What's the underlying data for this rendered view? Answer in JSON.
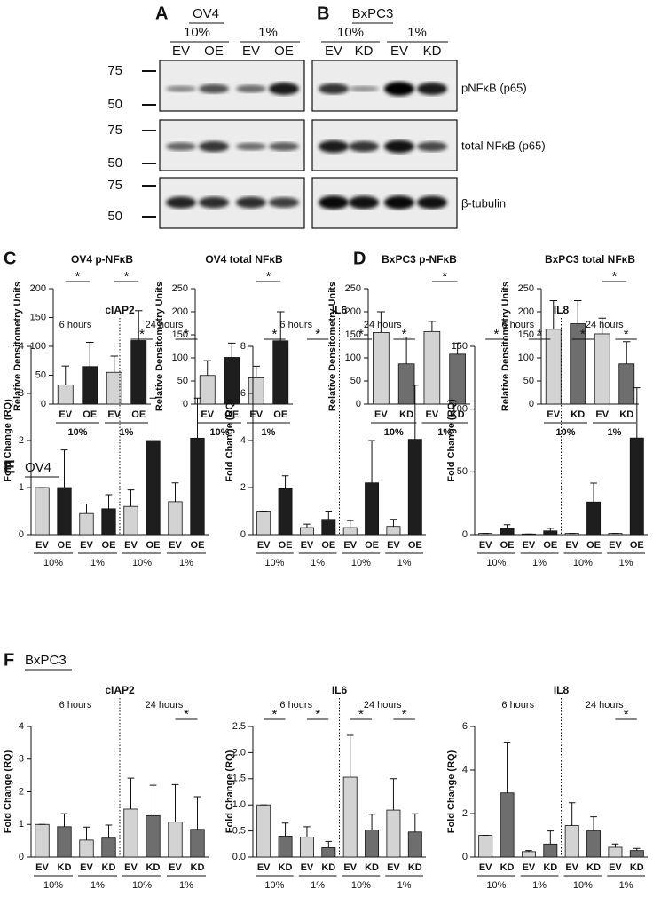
{
  "blots": {
    "panel_a": {
      "letter": "A",
      "cell_line": "OV4",
      "oxygen": [
        "10%",
        "1%"
      ],
      "lanes": [
        "EV",
        "OE",
        "EV",
        "OE"
      ]
    },
    "panel_b": {
      "letter": "B",
      "cell_line": "BxPC3",
      "oxygen": [
        "10%",
        "1%"
      ],
      "lanes": [
        "EV",
        "KD",
        "EV",
        "KD"
      ]
    },
    "markers": [
      [
        75,
        50
      ],
      [
        75,
        50
      ],
      [
        75,
        50
      ]
    ],
    "rows": [
      "pNFκB (p65)",
      "total NFκB (p65)",
      "β-tubulin"
    ]
  },
  "panel_letters": [
    "C",
    "D",
    "E",
    "F"
  ],
  "section_titles": [
    "OV4",
    "BxPC3"
  ],
  "chart_data": [
    {
      "type": "bar",
      "title": "OV4 p-NFκB",
      "ylabel": "Relative Densitometry Units",
      "categories": [
        "EV",
        "OE",
        "EV",
        "OE"
      ],
      "groups": [
        "10%",
        "1%"
      ],
      "values": [
        33,
        65,
        55,
        110
      ],
      "errors": [
        33,
        42,
        28,
        52
      ],
      "colors": [
        "#d3d3d3",
        "#1e1e1e",
        "#d3d3d3",
        "#1e1e1e"
      ],
      "ylim": [
        0,
        200
      ],
      "yticks": [
        0,
        50,
        100,
        150,
        200
      ],
      "annotations": [
        {
          "text": "*",
          "pair": 0
        },
        {
          "text": "*",
          "pair": 1
        }
      ]
    },
    {
      "type": "bar",
      "title": "OV4 total NFκB",
      "ylabel": "Relative Densitometry Units",
      "categories": [
        "EV",
        "OE",
        "EV",
        "OE"
      ],
      "groups": [
        "10%",
        "1%"
      ],
      "values": [
        62,
        101,
        57,
        137
      ],
      "errors": [
        32,
        31,
        25,
        63
      ],
      "colors": [
        "#d3d3d3",
        "#1e1e1e",
        "#d3d3d3",
        "#1e1e1e"
      ],
      "ylim": [
        0,
        250
      ],
      "yticks": [
        0,
        50,
        100,
        150,
        200,
        250
      ],
      "annotations": [
        {
          "text": "*",
          "pair": 1
        }
      ]
    },
    {
      "type": "bar",
      "title": "BxPC3 p-NFκB",
      "ylabel": "Relative Densitometry Units",
      "categories": [
        "EV",
        "KD",
        "EV",
        "KD"
      ],
      "groups": [
        "10%",
        "1%"
      ],
      "values": [
        155,
        87,
        157,
        108
      ],
      "errors": [
        45,
        58,
        22,
        24
      ],
      "colors": [
        "#d3d3d3",
        "#6e6e6e",
        "#d3d3d3",
        "#6e6e6e"
      ],
      "ylim": [
        0,
        250
      ],
      "yticks": [
        0,
        50,
        100,
        150,
        200,
        250
      ],
      "annotations": [
        {
          "text": "*",
          "pair": 1
        }
      ]
    },
    {
      "type": "bar",
      "title": "BxPC3 total NFκB",
      "ylabel": "Relative Densitometry Units",
      "categories": [
        "EV",
        "KD",
        "EV",
        "KD"
      ],
      "groups": [
        "10%",
        "1%"
      ],
      "values": [
        162,
        174,
        152,
        87
      ],
      "errors": [
        62,
        50,
        34,
        48
      ],
      "colors": [
        "#d3d3d3",
        "#6e6e6e",
        "#d3d3d3",
        "#6e6e6e"
      ],
      "ylim": [
        0,
        250
      ],
      "yticks": [
        0,
        50,
        100,
        150,
        200,
        250
      ],
      "annotations": [
        {
          "text": "*",
          "pair": 1
        }
      ]
    },
    {
      "type": "bar",
      "title": "cIAP2",
      "ylabel": "Fold Change (RQ)",
      "time_labels": [
        "6 hours",
        "24 hours"
      ],
      "categories": [
        "EV",
        "OE",
        "EV",
        "OE",
        "EV",
        "OE",
        "EV",
        "OE"
      ],
      "groups": [
        "10%",
        "1%",
        "10%",
        "1%"
      ],
      "values": [
        1,
        1,
        0.45,
        0.55,
        0.6,
        2,
        0.7,
        2.05
      ],
      "errors": [
        0,
        0.8,
        0.2,
        0.3,
        0.35,
        0.9,
        0.4,
        0.85
      ],
      "colors": [
        "#d3d3d3",
        "#1e1e1e",
        "#d3d3d3",
        "#1e1e1e",
        "#d3d3d3",
        "#1e1e1e",
        "#d3d3d3",
        "#1e1e1e"
      ],
      "ylim": [
        0,
        4
      ],
      "yticks": [
        0,
        1,
        2,
        3,
        4
      ],
      "annotations": [
        {
          "text": "*",
          "pair": 2
        },
        {
          "text": "*",
          "pair": 3
        }
      ]
    },
    {
      "type": "bar",
      "title": "IL6",
      "ylabel": "Fold Change (RQ)",
      "time_labels": [
        "6 hours",
        "24 hours"
      ],
      "categories": [
        "EV",
        "OE",
        "EV",
        "OE",
        "EV",
        "OE",
        "EV",
        "OE"
      ],
      "groups": [
        "10%",
        "1%",
        "10%",
        "1%"
      ],
      "values": [
        1,
        1.95,
        0.3,
        0.65,
        0.3,
        2.2,
        0.35,
        4.05
      ],
      "errors": [
        0,
        0.55,
        0.15,
        0.35,
        0.3,
        1.8,
        0.3,
        2.3
      ],
      "colors": [
        "#d3d3d3",
        "#1e1e1e",
        "#d3d3d3",
        "#1e1e1e",
        "#d3d3d3",
        "#1e1e1e",
        "#d3d3d3",
        "#1e1e1e"
      ],
      "ylim": [
        0,
        8
      ],
      "yticks": [
        0,
        2,
        4,
        6,
        8
      ],
      "annotations": [
        {
          "text": "*",
          "pair": 0
        },
        {
          "text": "*",
          "pair": 1
        },
        {
          "text": "*",
          "pair": 2
        },
        {
          "text": "*",
          "pair": 3
        }
      ]
    },
    {
      "type": "bar",
      "title": "IL8",
      "ylabel": "Fold Change (RQ)",
      "time_labels": [
        "6 hours",
        "24 hours"
      ],
      "categories": [
        "EV",
        "OE",
        "EV",
        "OE",
        "EV",
        "OE",
        "EV",
        "OE"
      ],
      "groups": [
        "10%",
        "1%",
        "10%",
        "1%"
      ],
      "values": [
        1,
        5,
        0.5,
        3,
        1,
        26,
        1,
        77
      ],
      "errors": [
        0,
        3,
        0,
        2,
        0,
        15,
        0,
        40
      ],
      "colors": [
        "#d3d3d3",
        "#1e1e1e",
        "#d3d3d3",
        "#1e1e1e",
        "#d3d3d3",
        "#1e1e1e",
        "#d3d3d3",
        "#1e1e1e"
      ],
      "ylim": [
        0,
        150
      ],
      "yticks": [
        0,
        50,
        100,
        150
      ],
      "annotations": [
        {
          "text": "*",
          "pair": 0
        },
        {
          "text": "*",
          "pair": 1
        },
        {
          "text": "*",
          "pair": 2
        },
        {
          "text": "*",
          "pair": 3
        }
      ]
    },
    {
      "type": "bar",
      "title": "cIAP2",
      "ylabel": "Fold Change (RQ)",
      "time_labels": [
        "6 hours",
        "24 hours"
      ],
      "categories": [
        "EV",
        "KD",
        "EV",
        "KD",
        "EV",
        "KD",
        "EV",
        "KD"
      ],
      "groups": [
        "10%",
        "1%",
        "10%",
        "1%"
      ],
      "values": [
        1,
        0.93,
        0.52,
        0.58,
        1.47,
        1.27,
        1.07,
        0.85
      ],
      "errors": [
        0,
        0.4,
        0.4,
        0.4,
        0.95,
        0.93,
        1.15,
        1
      ],
      "colors": [
        "#d3d3d3",
        "#6e6e6e",
        "#d3d3d3",
        "#6e6e6e",
        "#d3d3d3",
        "#6e6e6e",
        "#d3d3d3",
        "#6e6e6e"
      ],
      "ylim": [
        0,
        4
      ],
      "yticks": [
        0,
        1,
        2,
        3,
        4
      ],
      "annotations": [
        {
          "text": "*",
          "pair": 3
        }
      ]
    },
    {
      "type": "bar",
      "title": "IL6",
      "ylabel": "Fold Change (RQ)",
      "time_labels": [
        "6 hours",
        "24 hours"
      ],
      "categories": [
        "EV",
        "KD",
        "EV",
        "KD",
        "EV",
        "KD",
        "EV",
        "KD"
      ],
      "groups": [
        "10%",
        "1%",
        "10%",
        "1%"
      ],
      "values": [
        1,
        0.4,
        0.38,
        0.18,
        1.53,
        0.52,
        0.9,
        0.48
      ],
      "errors": [
        0,
        0.25,
        0.2,
        0.12,
        0.8,
        0.3,
        0.6,
        0.35
      ],
      "colors": [
        "#d3d3d3",
        "#6e6e6e",
        "#d3d3d3",
        "#6e6e6e",
        "#d3d3d3",
        "#6e6e6e",
        "#d3d3d3",
        "#6e6e6e"
      ],
      "ylim": [
        0,
        2.5
      ],
      "yticks": [
        {
          "value": 0,
          "label": "0.0"
        },
        0.5,
        {
          "value": 1,
          "label": "1.0"
        },
        1.5,
        {
          "value": 2,
          "label": "2.0"
        },
        2.5
      ],
      "annotations": [
        {
          "text": "*",
          "pair": 0
        },
        {
          "text": "*",
          "pair": 1
        },
        {
          "text": "*",
          "pair": 2
        },
        {
          "text": "*",
          "pair": 3
        }
      ]
    },
    {
      "type": "bar",
      "title": "IL8",
      "ylabel": "Fold Change (RQ)",
      "time_labels": [
        "6 hours",
        "24 hours"
      ],
      "categories": [
        "EV",
        "KD",
        "EV",
        "KD",
        "EV",
        "KD",
        "EV",
        "KD"
      ],
      "groups": [
        "10%",
        "1%",
        "10%",
        "1%"
      ],
      "values": [
        1,
        2.95,
        0.25,
        0.6,
        1.45,
        1.2,
        0.45,
        0.3
      ],
      "errors": [
        0,
        2.3,
        0.05,
        0.6,
        1.05,
        0.65,
        0.15,
        0.1
      ],
      "colors": [
        "#d3d3d3",
        "#6e6e6e",
        "#d3d3d3",
        "#6e6e6e",
        "#d3d3d3",
        "#6e6e6e",
        "#d3d3d3",
        "#6e6e6e"
      ],
      "ylim": [
        0,
        6
      ],
      "yticks": [
        0,
        2,
        4,
        6
      ],
      "annotations": [
        {
          "text": "*",
          "pair": 3
        }
      ]
    }
  ]
}
